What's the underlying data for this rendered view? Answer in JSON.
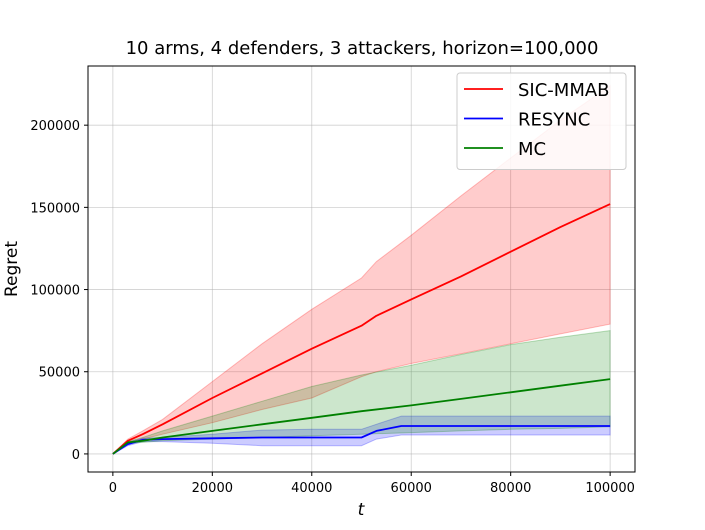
{
  "chart_data": {
    "type": "line",
    "title": "10 arms, 4 defenders, 3 attackers, horizon=100,000",
    "xlabel": "t",
    "ylabel": "Regret",
    "xlim": [
      -5000,
      105000
    ],
    "ylim": [
      -11000,
      236000
    ],
    "grid": true,
    "legend_position": "top-right",
    "x_ticks": [
      0,
      20000,
      40000,
      60000,
      80000,
      100000
    ],
    "y_ticks": [
      0,
      50000,
      100000,
      150000,
      200000
    ],
    "series": [
      {
        "name": "SIC-MMAB",
        "color": "#ff0000",
        "band_color": "#ff0000",
        "x": [
          0,
          3000,
          6000,
          10000,
          20000,
          30000,
          40000,
          50000,
          53000,
          60000,
          70000,
          80000,
          90000,
          100000
        ],
        "mean": [
          0,
          8000,
          12000,
          18000,
          34000,
          49000,
          64000,
          78000,
          84000,
          94000,
          108000,
          123000,
          138000,
          152000
        ],
        "lower": [
          0,
          7000,
          9000,
          12000,
          19000,
          27000,
          34000,
          47000,
          50000,
          55000,
          61000,
          67000,
          73000,
          79000
        ],
        "upper": [
          0,
          9000,
          14000,
          21000,
          44000,
          67000,
          88000,
          107000,
          117000,
          133000,
          157000,
          180000,
          203000,
          224000
        ]
      },
      {
        "name": "RESYNC",
        "color": "#0000ff",
        "band_color": "#0000ff",
        "x": [
          0,
          3000,
          6000,
          10000,
          20000,
          30000,
          40000,
          50000,
          53000,
          58000,
          60000,
          70000,
          80000,
          90000,
          100000
        ],
        "mean": [
          0,
          6000,
          8500,
          9000,
          9500,
          10000,
          10000,
          10000,
          14000,
          17000,
          17000,
          17000,
          17000,
          17000,
          17000
        ],
        "lower": [
          0,
          5000,
          7500,
          7500,
          6500,
          5000,
          5000,
          5000,
          9000,
          11500,
          11500,
          11500,
          11500,
          11500,
          11500
        ],
        "upper": [
          0,
          7000,
          9500,
          10000,
          12000,
          14500,
          15000,
          15000,
          18000,
          23000,
          23000,
          23000,
          23000,
          23000,
          23000
        ]
      },
      {
        "name": "MC",
        "color": "#008000",
        "band_color": "#008000",
        "x": [
          0,
          3000,
          6000,
          10000,
          20000,
          30000,
          40000,
          50000,
          60000,
          70000,
          80000,
          90000,
          100000
        ],
        "mean": [
          0,
          7000,
          8000,
          10000,
          14000,
          18000,
          22000,
          26000,
          29500,
          33500,
          37500,
          41500,
          45500
        ],
        "lower": [
          0,
          6500,
          7000,
          8000,
          9000,
          10000,
          11000,
          12000,
          13000,
          14000,
          15000,
          15500,
          16500
        ],
        "upper": [
          0,
          7500,
          10000,
          14000,
          23000,
          32000,
          41000,
          48000,
          54000,
          60500,
          66500,
          71000,
          75000
        ]
      }
    ]
  }
}
